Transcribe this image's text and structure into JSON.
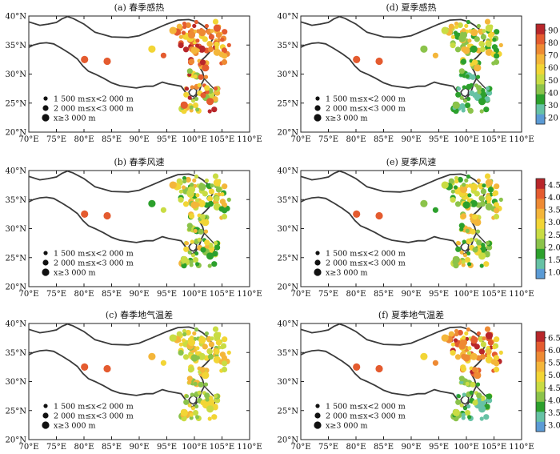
{
  "x_ticks": [
    "70°E",
    "75°E",
    "80°E",
    "85°E",
    "90°E",
    "95°E",
    "100°E",
    "105°E",
    "110°E"
  ],
  "y_ticks": [
    "20°N",
    "25°N",
    "30°N",
    "35°N",
    "40°N"
  ],
  "legend": {
    "small": "1 500 m≤x<2 000 m",
    "medium": "2 000 m≤x<3 000 m",
    "large": "x≥3 000 m"
  },
  "palette": [
    "#5b9bd5",
    "#66c2a5",
    "#2ca02c",
    "#8bc34a",
    "#c9dc43",
    "#f2d535",
    "#f4b63a",
    "#ee8a33",
    "#e45b2f",
    "#b8262a"
  ],
  "chart_data": [
    {
      "type": "scatter",
      "title": "(a) 春季感热",
      "col": 0,
      "row": 0,
      "colorbar": false
    },
    {
      "type": "scatter",
      "title": "(b) 春季风速",
      "col": 0,
      "row": 1,
      "colorbar": false
    },
    {
      "type": "scatter",
      "title": "(c) 春季地气温差",
      "col": 0,
      "row": 2,
      "colorbar": false
    },
    {
      "type": "scatter",
      "title": "(d) 夏季感热",
      "col": 1,
      "row": 0,
      "colorbar": true,
      "colorbar_ticks": [
        "20",
        "30",
        "40",
        "50",
        "60",
        "70",
        "80",
        "90"
      ],
      "clim": [
        15,
        95
      ]
    },
    {
      "type": "scatter",
      "title": "(e) 夏季风速",
      "col": 1,
      "row": 1,
      "colorbar": true,
      "colorbar_ticks": [
        "1.0",
        "1.5",
        "2.0",
        "2.5",
        "3.0",
        "3.5",
        "4.0",
        "4.5"
      ],
      "clim": [
        0.75,
        4.75
      ]
    },
    {
      "type": "scatter",
      "title": "(f) 夏季地气温差",
      "col": 1,
      "row": 2,
      "colorbar": true,
      "colorbar_ticks": [
        "3.0",
        "3.5",
        "4.0",
        "4.5",
        "5.0",
        "5.5",
        "6.0",
        "6.5"
      ],
      "clim": [
        2.75,
        6.75
      ]
    }
  ]
}
